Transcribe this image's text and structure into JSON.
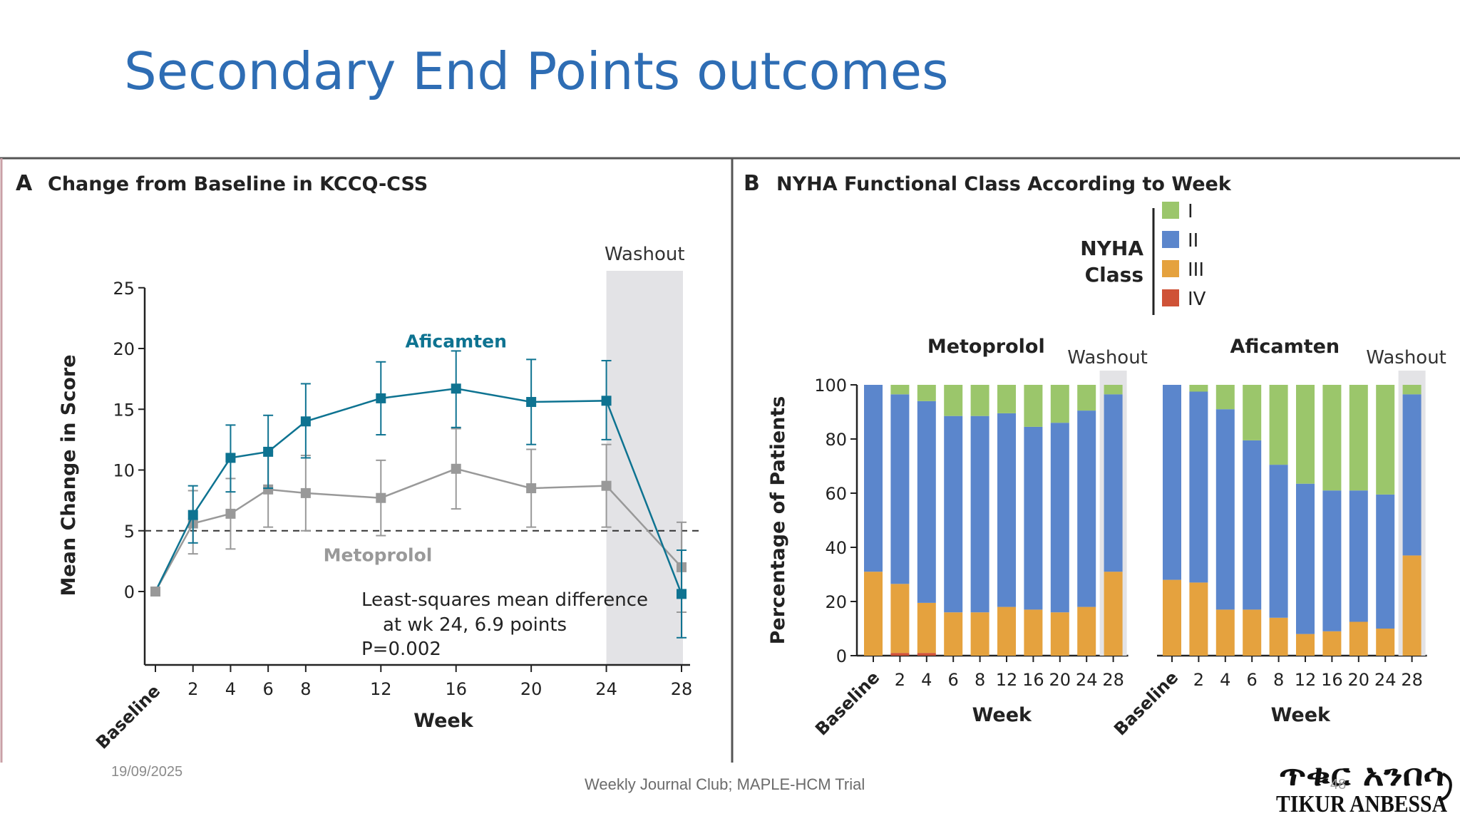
{
  "slide": {
    "title": "Secondary End Points outcomes",
    "date": "19/09/2025",
    "footer": "Weekly Journal Club; MAPLE-HCM Trial",
    "page_number": "48",
    "logo_geez": "ጥቁር አንበሳ",
    "logo_text": "TIKUR ANBESSA"
  },
  "colors": {
    "title": "#2E6DB4",
    "aficamten": "#0E7391",
    "metoprolol": "#999999",
    "washout_band": "#E3E3E6",
    "nyha_I": "#9BC66B",
    "nyha_II": "#5B86CC",
    "nyha_III": "#E5A23E",
    "nyha_IV": "#CF5237"
  },
  "chart_data": [
    {
      "type": "line",
      "panel_letter": "A",
      "title": "Change from Baseline in KCCQ-CSS",
      "xlabel": "Week",
      "ylabel": "Mean Change in Score",
      "x_ticks": [
        "Baseline",
        "2",
        "4",
        "6",
        "8",
        "12",
        "16",
        "20",
        "24",
        "28"
      ],
      "x": [
        0,
        2,
        4,
        6,
        8,
        12,
        16,
        20,
        24,
        28
      ],
      "ylim": [
        -6,
        25
      ],
      "y_ticks": [
        0,
        5,
        10,
        15,
        20,
        25
      ],
      "reference_line": 5,
      "washout_label": "Washout",
      "washout_range": [
        24,
        28
      ],
      "series": [
        {
          "name": "Aficamten",
          "color_key": "aficamten",
          "values": [
            0,
            6.3,
            11.0,
            11.5,
            14.0,
            15.9,
            16.7,
            15.6,
            15.7,
            -0.2
          ],
          "err_low": [
            0,
            4.0,
            8.2,
            8.5,
            11.0,
            12.9,
            13.5,
            12.1,
            12.5,
            -3.8
          ],
          "err_high": [
            0,
            8.7,
            13.7,
            14.5,
            17.1,
            18.9,
            19.8,
            19.1,
            19.0,
            3.4
          ]
        },
        {
          "name": "Metoprolol",
          "color_key": "metoprolol",
          "values": [
            0,
            5.6,
            6.4,
            8.4,
            8.1,
            7.7,
            10.1,
            8.5,
            8.7,
            2.0
          ],
          "err_low": [
            0,
            3.1,
            3.5,
            5.3,
            5.0,
            4.6,
            6.8,
            5.3,
            5.3,
            -1.7
          ],
          "err_high": [
            0,
            8.3,
            9.3,
            11.5,
            11.2,
            10.8,
            13.4,
            11.7,
            12.1,
            5.7
          ]
        }
      ],
      "annotation": [
        "Least-squares mean difference",
        "at wk 24, 6.9 points",
        "P=0.002"
      ]
    },
    {
      "type": "bar",
      "stacked": true,
      "panel_letter": "B",
      "title": "NYHA Functional Class According to Week",
      "xlabel": "Week",
      "ylabel": "Percentage of Patients",
      "ylim": [
        0,
        100
      ],
      "y_ticks": [
        0,
        20,
        40,
        60,
        80,
        100
      ],
      "legend_title": [
        "NYHA",
        "Class"
      ],
      "legend_position": "top",
      "classes": [
        "I",
        "II",
        "III",
        "IV"
      ],
      "washout_label": "Washout",
      "categories": [
        "Baseline",
        "2",
        "4",
        "6",
        "8",
        "12",
        "16",
        "20",
        "24",
        "28"
      ],
      "groups": [
        {
          "name": "Metoprolol",
          "series": [
            {
              "name": "IV",
              "values": [
                0,
                1,
                1,
                0,
                0,
                0,
                0,
                0,
                0,
                0
              ]
            },
            {
              "name": "III",
              "values": [
                31,
                25.5,
                18.5,
                16,
                16,
                18,
                17,
                16,
                18,
                31
              ]
            },
            {
              "name": "II",
              "values": [
                69,
                70,
                74.5,
                72.5,
                72.5,
                71.5,
                67.5,
                70,
                72.5,
                65.5
              ]
            },
            {
              "name": "I",
              "values": [
                0,
                3.5,
                6,
                11.5,
                11.5,
                10.5,
                15.5,
                14,
                9.5,
                3.5
              ]
            }
          ]
        },
        {
          "name": "Aficamten",
          "series": [
            {
              "name": "IV",
              "values": [
                0,
                0,
                0,
                0,
                0,
                0,
                0,
                0,
                0,
                0
              ]
            },
            {
              "name": "III",
              "values": [
                28,
                27,
                17,
                17,
                14,
                8,
                9,
                12.5,
                10,
                37
              ]
            },
            {
              "name": "II",
              "values": [
                72,
                70.5,
                74,
                62.5,
                56.5,
                55.5,
                52,
                48.5,
                49.5,
                59.5
              ]
            },
            {
              "name": "I",
              "values": [
                0,
                2.5,
                9,
                20.5,
                29.5,
                36.5,
                39,
                39,
                40.5,
                3.5
              ]
            }
          ]
        }
      ]
    }
  ]
}
